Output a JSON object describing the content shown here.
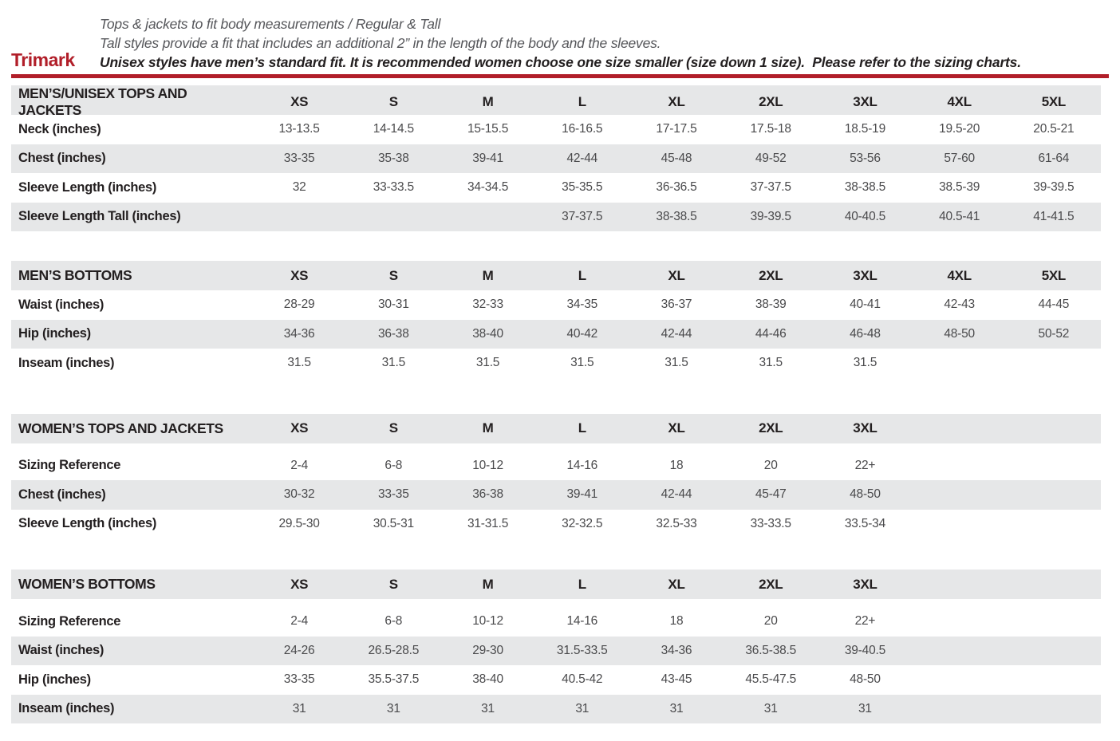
{
  "colors": {
    "accent_red": "#b11e29",
    "band_gray": "#e6e7e8",
    "label_black": "#231f20",
    "value_gray": "#4a4a4c"
  },
  "header": {
    "brand": "Trimark",
    "line1": "Tops & jackets to fit body measurements / Regular & Tall",
    "line2": "Tall styles provide a fit that includes an additional 2” in the length of the body and the sleeves.",
    "line3": "Unisex styles have men’s standard fit. It is recommended women choose one size smaller (size down 1 size).  Please refer to the sizing charts."
  },
  "tables": [
    {
      "title": "MEN’S/UNISEX TOPS AND JACKETS",
      "sizes": [
        "XS",
        "S",
        "M",
        "L",
        "XL",
        "2XL",
        "3XL",
        "4XL",
        "5XL"
      ],
      "rows": [
        {
          "label": "Neck (inches)",
          "values": [
            "13-13.5",
            "14-14.5",
            "15-15.5",
            "16-16.5",
            "17-17.5",
            "17.5-18",
            "18.5-19",
            "19.5-20",
            "20.5-21"
          ]
        },
        {
          "label": "Chest (inches)",
          "values": [
            "33-35",
            "35-38",
            "39-41",
            "42-44",
            "45-48",
            "49-52",
            "53-56",
            "57-60",
            "61-64"
          ]
        },
        {
          "label": "Sleeve Length (inches)",
          "values": [
            "32",
            "33-33.5",
            "34-34.5",
            "35-35.5",
            "36-36.5",
            "37-37.5",
            "38-38.5",
            "38.5-39",
            "39-39.5"
          ]
        },
        {
          "label": "Sleeve Length Tall (inches)",
          "values": [
            "",
            "",
            "",
            "37-37.5",
            "38-38.5",
            "39-39.5",
            "40-40.5",
            "40.5-41",
            "41-41.5"
          ]
        }
      ]
    },
    {
      "title": "MEN’S BOTTOMS",
      "sizes": [
        "XS",
        "S",
        "M",
        "L",
        "XL",
        "2XL",
        "3XL",
        "4XL",
        "5XL"
      ],
      "rows": [
        {
          "label": "Waist (inches)",
          "values": [
            "28-29",
            "30-31",
            "32-33",
            "34-35",
            "36-37",
            "38-39",
            "40-41",
            "42-43",
            "44-45"
          ]
        },
        {
          "label": "Hip (inches)",
          "values": [
            "34-36",
            "36-38",
            "38-40",
            "40-42",
            "42-44",
            "44-46",
            "46-48",
            "48-50",
            "50-52"
          ]
        },
        {
          "label": "Inseam (inches)",
          "values": [
            "31.5",
            "31.5",
            "31.5",
            "31.5",
            "31.5",
            "31.5",
            "31.5",
            "",
            ""
          ]
        }
      ]
    },
    {
      "title": "WOMEN’S TOPS AND JACKETS",
      "sizes": [
        "XS",
        "S",
        "M",
        "L",
        "XL",
        "2XL",
        "3XL"
      ],
      "rows": [
        {
          "label": "Sizing Reference",
          "values": [
            "2-4",
            "6-8",
            "10-12",
            "14-16",
            "18",
            "20",
            "22+"
          ]
        },
        {
          "label": "Chest (inches)",
          "values": [
            "30-32",
            "33-35",
            "36-38",
            "39-41",
            "42-44",
            "45-47",
            "48-50"
          ]
        },
        {
          "label": "Sleeve Length (inches)",
          "values": [
            "29.5-30",
            "30.5-31",
            "31-31.5",
            "32-32.5",
            "32.5-33",
            "33-33.5",
            "33.5-34"
          ]
        }
      ]
    },
    {
      "title": "WOMEN’S BOTTOMS",
      "sizes": [
        "XS",
        "S",
        "M",
        "L",
        "XL",
        "2XL",
        "3XL"
      ],
      "rows": [
        {
          "label": "Sizing Reference",
          "values": [
            "2-4",
            "6-8",
            "10-12",
            "14-16",
            "18",
            "20",
            "22+"
          ]
        },
        {
          "label": "Waist (inches)",
          "values": [
            "24-26",
            "26.5-28.5",
            "29-30",
            "31.5-33.5",
            "34-36",
            "36.5-38.5",
            "39-40.5"
          ]
        },
        {
          "label": "Hip (inches)",
          "values": [
            "33-35",
            "35.5-37.5",
            "38-40",
            "40.5-42",
            "43-45",
            "45.5-47.5",
            "48-50"
          ]
        },
        {
          "label": "Inseam (inches)",
          "values": [
            "31",
            "31",
            "31",
            "31",
            "31",
            "31",
            "31"
          ]
        }
      ]
    }
  ]
}
